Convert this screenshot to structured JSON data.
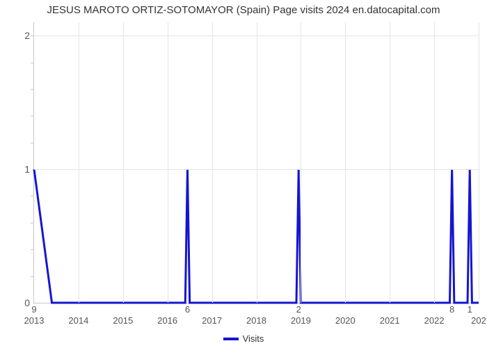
{
  "chart": {
    "type": "line",
    "title": "JESUS MAROTO ORTIZ-SOTOMAYOR (Spain) Page visits 2024 en.datocapital.com",
    "title_fontsize": 15,
    "title_color": "#333333",
    "background_color": "#ffffff",
    "grid_color": "#e4e4e4",
    "axis_color": "#c8c8c8",
    "tick_label_color": "#555555",
    "tick_fontsize": 14,
    "series": {
      "name": "Visits",
      "color": "#1515d2",
      "line_width": 3,
      "x": [
        0.0,
        0.04,
        0.08,
        0.34,
        0.345,
        0.35,
        0.59,
        0.595,
        0.6,
        0.935,
        0.94,
        0.945,
        0.975,
        0.98,
        0.985,
        1.0
      ],
      "y": [
        1,
        0,
        0,
        0,
        1,
        0,
        0,
        1,
        0,
        0,
        1,
        0,
        0,
        1,
        0,
        0
      ]
    },
    "y_axis": {
      "min": 0,
      "max": 2.1,
      "major_ticks": [
        0,
        1,
        2
      ],
      "minor_ticks": [
        0.2,
        0.4,
        0.6,
        0.8,
        1.2,
        1.4,
        1.6,
        1.8,
        2.0
      ]
    },
    "x_axis": {
      "min": 0,
      "max": 1,
      "year_labels": [
        {
          "pos": 0.0,
          "text": "2013"
        },
        {
          "pos": 0.1,
          "text": "2014"
        },
        {
          "pos": 0.2,
          "text": "2015"
        },
        {
          "pos": 0.3,
          "text": "2016"
        },
        {
          "pos": 0.4,
          "text": "2017"
        },
        {
          "pos": 0.5,
          "text": "2018"
        },
        {
          "pos": 0.6,
          "text": "2019"
        },
        {
          "pos": 0.7,
          "text": "2020"
        },
        {
          "pos": 0.8,
          "text": "2021"
        },
        {
          "pos": 0.9,
          "text": "2022"
        },
        {
          "pos": 1.0,
          "text": "202"
        }
      ],
      "top_numbers": [
        {
          "pos": 0.0,
          "text": "9"
        },
        {
          "pos": 0.345,
          "text": "6"
        },
        {
          "pos": 0.595,
          "text": "2"
        },
        {
          "pos": 0.94,
          "text": "8"
        },
        {
          "pos": 0.98,
          "text": "1"
        }
      ],
      "grid_positions": [
        0.1,
        0.2,
        0.3,
        0.4,
        0.5,
        0.6,
        0.7,
        0.8,
        0.9,
        1.0
      ]
    },
    "legend": {
      "label": "Visits",
      "swatch_color": "#1515d2"
    }
  }
}
